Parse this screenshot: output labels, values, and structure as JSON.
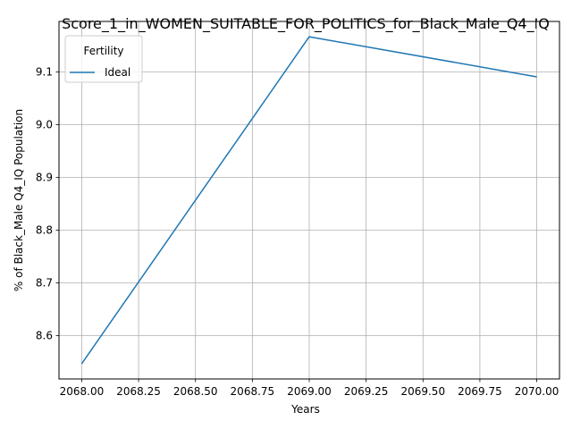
{
  "chart_data": {
    "type": "line",
    "title": "Score_1_in_WOMEN_SUITABLE_FOR_POLITICS_for_Black_Male_Q4_IQ",
    "xlabel": "Years",
    "ylabel": "% of Black_Male Q4_IQ Population",
    "x_ticks": [
      2068.0,
      2068.25,
      2068.5,
      2068.75,
      2069.0,
      2069.25,
      2069.5,
      2069.75,
      2070.0
    ],
    "x_tick_labels": [
      "2068.00",
      "2068.25",
      "2068.50",
      "2068.75",
      "2069.00",
      "2069.25",
      "2069.50",
      "2069.75",
      "2070.00"
    ],
    "y_ticks": [
      8.6,
      8.7,
      8.8,
      8.9,
      9.0,
      9.1
    ],
    "y_tick_labels": [
      "8.6",
      "8.7",
      "8.8",
      "8.9",
      "9.0",
      "9.1"
    ],
    "xlim": [
      2067.9,
      2070.1
    ],
    "ylim": [
      8.518,
      9.196
    ],
    "grid": true,
    "legend": {
      "title": "Fertility",
      "placement": "top-left"
    },
    "series": [
      {
        "name": "Ideal",
        "color": "#1f77b4",
        "x": [
          2068,
          2069,
          2070
        ],
        "y": [
          8.547,
          9.167,
          9.091
        ]
      }
    ]
  }
}
